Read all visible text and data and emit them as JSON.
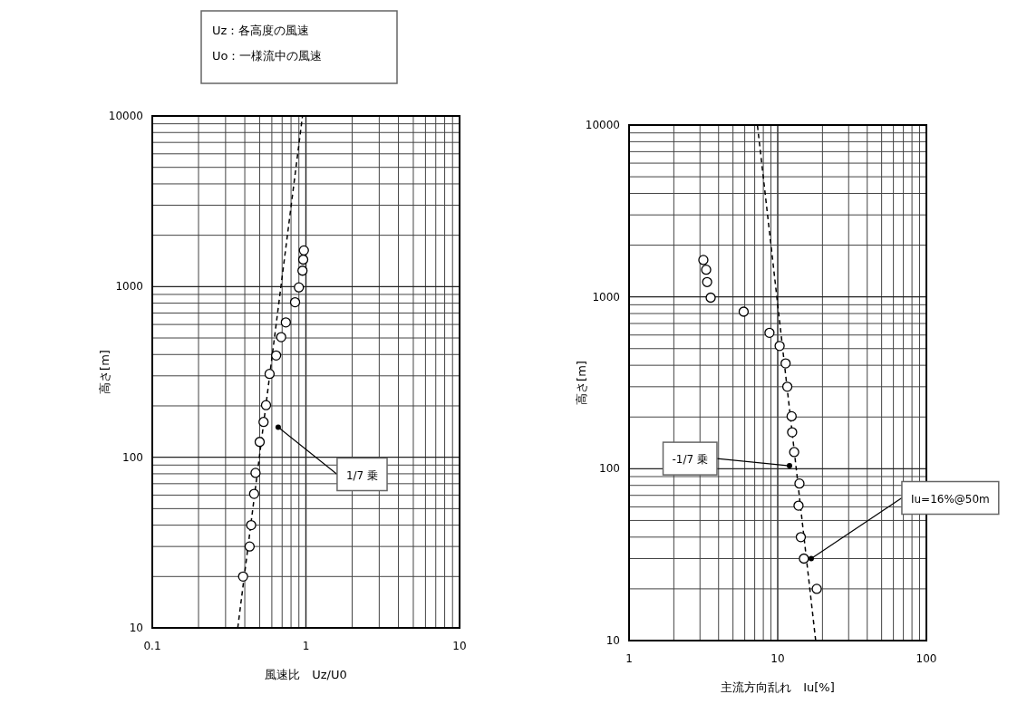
{
  "chart_data": [
    {
      "type": "scatter",
      "log": "xy",
      "xlim": [
        0.1,
        10
      ],
      "ylim": [
        10,
        10000
      ],
      "xticks": [
        0.1,
        1,
        10
      ],
      "yticks": [
        10,
        100,
        1000,
        10000
      ],
      "xlabel": "風速比　Uz/U0",
      "ylabel": "高さ[m]",
      "grid": true,
      "marker": "circle",
      "annotations": [
        "Uz：各高度の風速",
        "Uo：一様流中の風速",
        {
          "text": "1/7 乗",
          "x": 0.66,
          "y": 150
        }
      ],
      "series": [
        {
          "color": "#000000",
          "x": [
            0.39,
            0.43,
            0.44,
            0.46,
            0.47,
            0.5,
            0.53,
            0.55,
            0.58,
            0.64,
            0.69,
            0.74,
            0.85,
            0.9,
            0.95,
            0.96,
            0.97
          ],
          "values": [
            20,
            30,
            40,
            61,
            81,
            123,
            161,
            202,
            308,
            395,
            506,
            617,
            810,
            990,
            1240,
            1440,
            1630
          ]
        },
        {
          "type": "line",
          "color": "#000000",
          "line_style": "dashed",
          "marker": "none",
          "x": [
            0.36,
            0.95
          ],
          "values": [
            10,
            10000
          ]
        }
      ]
    },
    {
      "type": "scatter",
      "log": "xy",
      "xlim": [
        1,
        100
      ],
      "ylim": [
        10,
        10000
      ],
      "xticks": [
        1,
        10,
        100
      ],
      "yticks": [
        10,
        100,
        1000,
        10000
      ],
      "xlabel": "主流方向乱れ　Iu[%]",
      "ylabel": "高さ[m]",
      "grid": true,
      "marker": "circle",
      "annotations": [
        {
          "text": "-1/7 乗",
          "x": 12,
          "y": 104
        },
        {
          "text": "Iu=16%@50m",
          "x": 16.8,
          "y": 30
        }
      ],
      "series": [
        {
          "color": "#000000",
          "x": [
            18.3,
            15,
            14.3,
            13.8,
            14,
            12.9,
            12.5,
            12.4,
            11.6,
            11.3,
            10.3,
            8.8,
            5.9,
            3.54,
            3.35,
            3.3,
            3.16
          ],
          "values": [
            20,
            30,
            40,
            61,
            82,
            125,
            163,
            202,
            300,
            410,
            518,
            618,
            820,
            990,
            1220,
            1440,
            1640
          ]
        },
        {
          "type": "line",
          "color": "#000000",
          "line_style": "dashed",
          "marker": "none",
          "x": [
            18,
            7.3
          ],
          "values": [
            10,
            10000
          ]
        }
      ]
    }
  ]
}
